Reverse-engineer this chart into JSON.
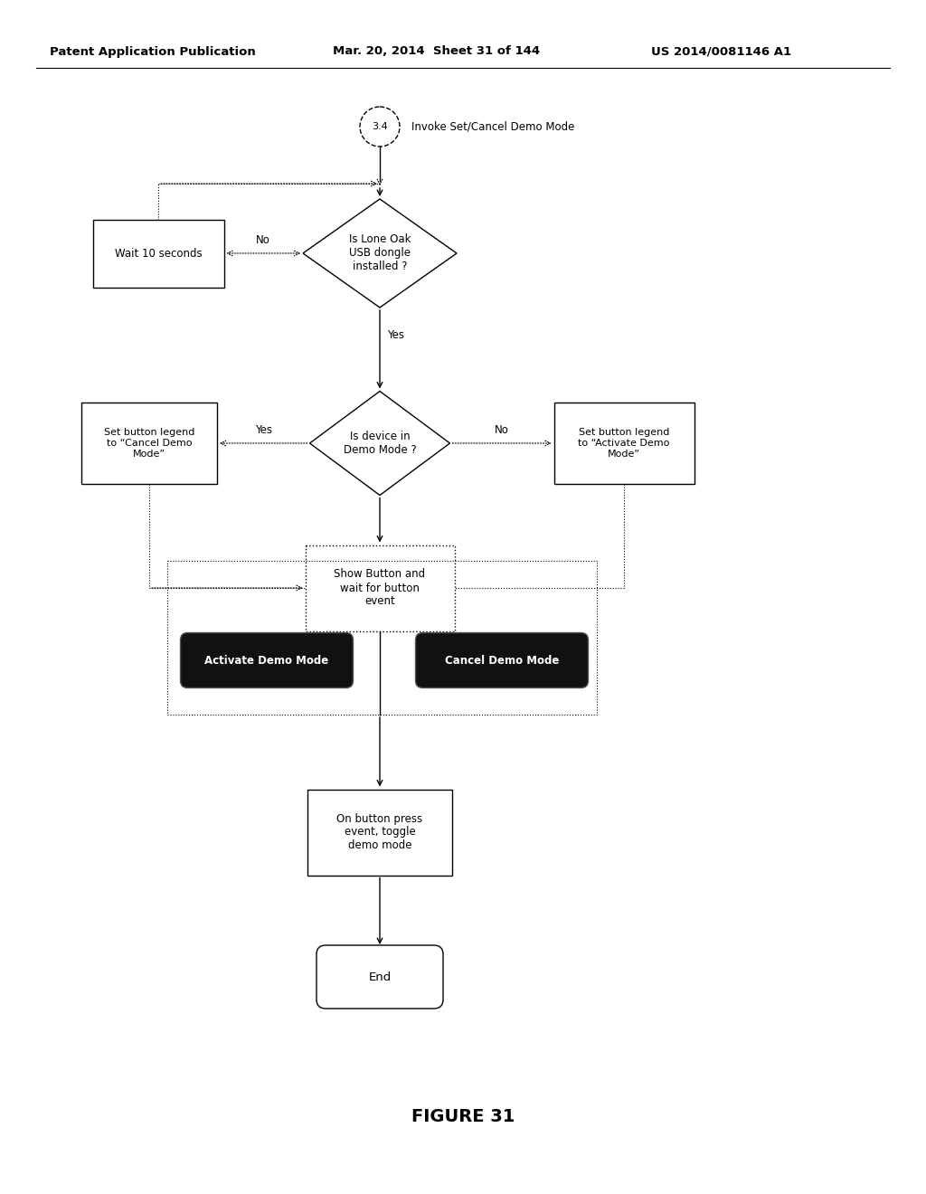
{
  "header_left": "Patent Application Publication",
  "header_mid": "Mar. 20, 2014  Sheet 31 of 144",
  "header_right": "US 2014/0081146 A1",
  "figure_label": "FIGURE 31",
  "start_label": "3.4",
  "start_text": "Invoke Set/Cancel Demo Mode",
  "diamond1_text": "Is Lone Oak\nUSB dongle\ninstalled ?",
  "wait_box_text": "Wait 10 seconds",
  "no1_label": "No",
  "yes1_label": "Yes",
  "diamond2_text": "Is device in\nDemo Mode ?",
  "left_box_text": "Set button legend\nto “Cancel Demo\nMode”",
  "right_box_text": "Set button legend\nto “Activate Demo\nMode”",
  "yes2_label": "Yes",
  "no2_label": "No",
  "show_box_text": "Show Button and\nwait for button\nevent",
  "btn1_text": "Activate Demo Mode",
  "btn2_text": "Cancel Demo Mode",
  "toggle_box_text": "On button press\nevent, toggle\ndemo mode",
  "end_text": "End",
  "bg_color": "#ffffff",
  "line_color": "#000000",
  "font_size": 8.5,
  "header_font_size": 9.5
}
